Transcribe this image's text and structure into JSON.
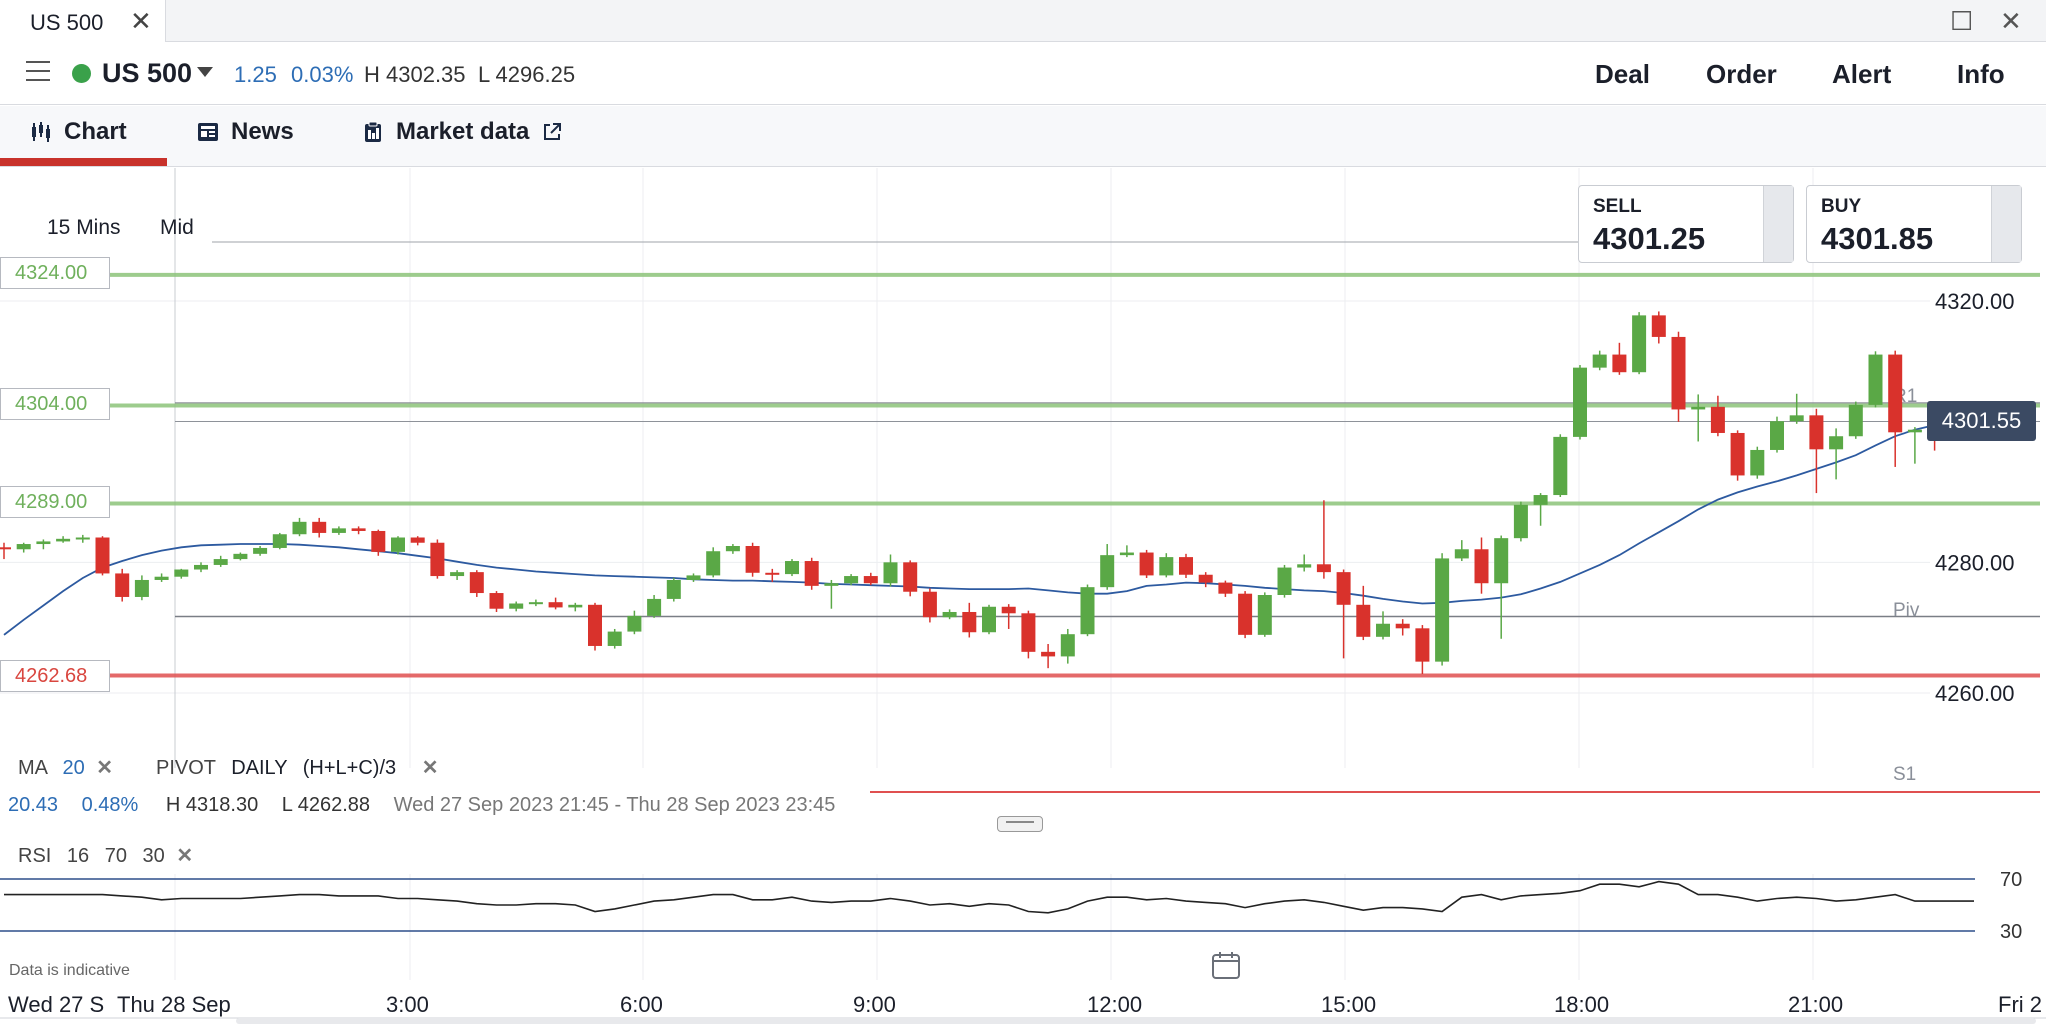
{
  "window": {
    "tab_title": "US 500",
    "close_glyph": "✕",
    "maximize_glyph": "☐",
    "window_close_glyph": "✕"
  },
  "header": {
    "instrument": "US 500",
    "change": "1.25",
    "change_pct": "0.03%",
    "high": "H 4302.35",
    "low": "L 4296.25",
    "actions": [
      "Deal",
      "Order",
      "Alert",
      "Info"
    ],
    "status_color": "#3aa14a"
  },
  "nav": {
    "tabs": [
      {
        "label": "Chart",
        "icon": "candlestick-icon",
        "active": true
      },
      {
        "label": "News",
        "icon": "newspaper-icon"
      },
      {
        "label": "Market data",
        "icon": "clipboard-icon",
        "external_icon": "external-link-icon"
      }
    ]
  },
  "chart_controls": {
    "interval": "15 Mins",
    "price_type": "Mid"
  },
  "quote": {
    "sell_label": "SELL",
    "sell_price": "4301.25",
    "buy_label": "BUY",
    "buy_price": "4301.85",
    "current_price": "4301.55"
  },
  "levels": [
    {
      "label": "4324.00",
      "value": 4324.0,
      "color": "#8cc47a"
    },
    {
      "label": "4304.00",
      "value": 4304.0,
      "color": "#8cc47a"
    },
    {
      "label": "4289.00",
      "value": 4289.0,
      "color": "#8cc47a"
    },
    {
      "label": "4262.68",
      "value": 4262.68,
      "color": "#e05050"
    }
  ],
  "pivot_labels": [
    "R1",
    "Piv",
    "S1"
  ],
  "indicators": {
    "ma_label": "MA",
    "ma_period": "20",
    "pivot_label": "PIVOT",
    "pivot_period": "DAILY",
    "pivot_formula": "(H+L+C)/3",
    "remove_glyph": "✕",
    "rsi_label": "RSI",
    "rsi_period": "16",
    "rsi_upper": "70",
    "rsi_lower": "30"
  },
  "range_info": {
    "change": "20.43",
    "change_pct": "0.48%",
    "high": "H 4318.30",
    "low": "L 4262.88",
    "period": "Wed 27 Sep 2023 21:45 - Thu 28 Sep 2023 23:45"
  },
  "footer": {
    "disclaimer": "Data is indicative"
  },
  "chart_data": {
    "type": "candlestick",
    "interval": "15 Mins",
    "price_axis": {
      "ticks": [
        "4320.00",
        "4280.00",
        "4260.00"
      ],
      "tick_values": [
        4320,
        4280,
        4260
      ]
    },
    "time_axis": {
      "ticks": [
        "Wed 27 S",
        "Thu 28 Sep",
        "3:00",
        "6:00",
        "9:00",
        "12:00",
        "15:00",
        "18:00",
        "21:00",
        "Fri 2"
      ]
    },
    "rsi_axis": {
      "ticks": [
        "70",
        "30"
      ]
    },
    "candles": [
      {
        "o": 4282.3,
        "h": 4283,
        "l": 4280.5,
        "c": 4282.0
      },
      {
        "o": 4282.0,
        "h": 4283,
        "l": 4281.5,
        "c": 4282.8
      },
      {
        "o": 4282.8,
        "h": 4283.5,
        "l": 4282,
        "c": 4283.2
      },
      {
        "o": 4283.2,
        "h": 4284,
        "l": 4283,
        "c": 4283.6
      },
      {
        "o": 4283.6,
        "h": 4284.2,
        "l": 4283,
        "c": 4283.8
      },
      {
        "o": 4283.8,
        "h": 4284,
        "l": 4278,
        "c": 4278.3
      },
      {
        "o": 4278.3,
        "h": 4279,
        "l": 4274,
        "c": 4274.7
      },
      {
        "o": 4274.7,
        "h": 4278,
        "l": 4274.2,
        "c": 4277.3
      },
      {
        "o": 4277.3,
        "h": 4278.3,
        "l": 4277,
        "c": 4277.8
      },
      {
        "o": 4277.8,
        "h": 4279,
        "l": 4277.5,
        "c": 4278.9
      },
      {
        "o": 4278.9,
        "h": 4280,
        "l": 4278.5,
        "c": 4279.6
      },
      {
        "o": 4279.6,
        "h": 4281,
        "l": 4279.3,
        "c": 4280.5
      },
      {
        "o": 4280.5,
        "h": 4281.5,
        "l": 4280.3,
        "c": 4281.3
      },
      {
        "o": 4281.3,
        "h": 4282.5,
        "l": 4281,
        "c": 4282.2
      },
      {
        "o": 4282.2,
        "h": 4284.5,
        "l": 4282,
        "c": 4284.3
      },
      {
        "o": 4284.3,
        "h": 4286.8,
        "l": 4284,
        "c": 4286.2
      },
      {
        "o": 4286.2,
        "h": 4286.8,
        "l": 4283.8,
        "c": 4284.5
      },
      {
        "o": 4284.5,
        "h": 4285.5,
        "l": 4284.2,
        "c": 4285.2
      },
      {
        "o": 4285.2,
        "h": 4285.5,
        "l": 4284.3,
        "c": 4284.8
      },
      {
        "o": 4284.8,
        "h": 4285,
        "l": 4281,
        "c": 4281.6
      },
      {
        "o": 4281.6,
        "h": 4284,
        "l": 4281.2,
        "c": 4283.8
      },
      {
        "o": 4283.8,
        "h": 4284,
        "l": 4282.6,
        "c": 4283.0
      },
      {
        "o": 4283.0,
        "h": 4283.5,
        "l": 4277.5,
        "c": 4277.9
      },
      {
        "o": 4277.9,
        "h": 4278.8,
        "l": 4277.3,
        "c": 4278.5
      },
      {
        "o": 4278.5,
        "h": 4278.8,
        "l": 4274.7,
        "c": 4275.3
      },
      {
        "o": 4275.3,
        "h": 4275.6,
        "l": 4272.4,
        "c": 4272.9
      },
      {
        "o": 4272.9,
        "h": 4274,
        "l": 4272.5,
        "c": 4273.7
      },
      {
        "o": 4273.7,
        "h": 4274.3,
        "l": 4273.3,
        "c": 4273.9
      },
      {
        "o": 4273.9,
        "h": 4274.6,
        "l": 4272.8,
        "c": 4273.1
      },
      {
        "o": 4273.1,
        "h": 4273.8,
        "l": 4272.5,
        "c": 4273.5
      },
      {
        "o": 4273.5,
        "h": 4273.8,
        "l": 4266.5,
        "c": 4267.2
      },
      {
        "o": 4267.2,
        "h": 4269.8,
        "l": 4266.8,
        "c": 4269.4
      },
      {
        "o": 4269.4,
        "h": 4272.6,
        "l": 4269,
        "c": 4271.8
      },
      {
        "o": 4271.8,
        "h": 4275,
        "l": 4271.5,
        "c": 4274.4
      },
      {
        "o": 4274.4,
        "h": 4277.6,
        "l": 4274,
        "c": 4277.3
      },
      {
        "o": 4277.3,
        "h": 4278.3,
        "l": 4277,
        "c": 4278.0
      },
      {
        "o": 4278.0,
        "h": 4282.3,
        "l": 4277.7,
        "c": 4281.7
      },
      {
        "o": 4281.7,
        "h": 4282.8,
        "l": 4281.3,
        "c": 4282.5
      },
      {
        "o": 4282.5,
        "h": 4283,
        "l": 4277.8,
        "c": 4278.4
      },
      {
        "o": 4278.4,
        "h": 4279,
        "l": 4277,
        "c": 4278.2
      },
      {
        "o": 4278.2,
        "h": 4280.5,
        "l": 4277.9,
        "c": 4280.2
      },
      {
        "o": 4280.2,
        "h": 4280.7,
        "l": 4275.8,
        "c": 4276.4
      },
      {
        "o": 4276.4,
        "h": 4277.3,
        "l": 4272.9,
        "c": 4276.8
      },
      {
        "o": 4276.8,
        "h": 4278.2,
        "l": 4276.5,
        "c": 4277.9
      },
      {
        "o": 4277.9,
        "h": 4278.4,
        "l": 4276.5,
        "c": 4276.8
      },
      {
        "o": 4276.8,
        "h": 4281.2,
        "l": 4276.3,
        "c": 4280.0
      },
      {
        "o": 4280.0,
        "h": 4280.3,
        "l": 4274.8,
        "c": 4275.5
      },
      {
        "o": 4275.5,
        "h": 4276,
        "l": 4270.8,
        "c": 4271.6
      },
      {
        "o": 4271.6,
        "h": 4272.8,
        "l": 4271.3,
        "c": 4272.4
      },
      {
        "o": 4272.4,
        "h": 4273.8,
        "l": 4268.5,
        "c": 4269.3
      },
      {
        "o": 4269.3,
        "h": 4273.5,
        "l": 4269,
        "c": 4273.2
      },
      {
        "o": 4273.2,
        "h": 4273.6,
        "l": 4269.8,
        "c": 4272.2
      },
      {
        "o": 4272.2,
        "h": 4272.6,
        "l": 4265.3,
        "c": 4266.3
      },
      {
        "o": 4266.3,
        "h": 4267.5,
        "l": 4263.8,
        "c": 4265.6
      },
      {
        "o": 4265.6,
        "h": 4269.8,
        "l": 4264.5,
        "c": 4269.0
      },
      {
        "o": 4269.0,
        "h": 4276.6,
        "l": 4268.7,
        "c": 4276.2
      },
      {
        "o": 4276.2,
        "h": 4282.8,
        "l": 4275.8,
        "c": 4281.1
      },
      {
        "o": 4281.1,
        "h": 4282.6,
        "l": 4280.8,
        "c": 4281.5
      },
      {
        "o": 4281.5,
        "h": 4281.9,
        "l": 4277.6,
        "c": 4278.0
      },
      {
        "o": 4278.0,
        "h": 4281.4,
        "l": 4277.7,
        "c": 4280.8
      },
      {
        "o": 4280.8,
        "h": 4281.3,
        "l": 4277.6,
        "c": 4278.1
      },
      {
        "o": 4278.1,
        "h": 4278.5,
        "l": 4276.2,
        "c": 4276.9
      },
      {
        "o": 4276.9,
        "h": 4277.2,
        "l": 4274.7,
        "c": 4275.2
      },
      {
        "o": 4275.2,
        "h": 4275.6,
        "l": 4268.4,
        "c": 4268.9
      },
      {
        "o": 4268.9,
        "h": 4275.4,
        "l": 4268.6,
        "c": 4275.0
      },
      {
        "o": 4275.0,
        "h": 4279.6,
        "l": 4274.6,
        "c": 4279.2
      },
      {
        "o": 4279.2,
        "h": 4281.2,
        "l": 4278.6,
        "c": 4279.7
      },
      {
        "o": 4279.7,
        "h": 4289.5,
        "l": 4277.5,
        "c": 4278.5
      },
      {
        "o": 4278.5,
        "h": 4278.9,
        "l": 4265.3,
        "c": 4273.5
      },
      {
        "o": 4273.5,
        "h": 4276.4,
        "l": 4268.1,
        "c": 4268.6
      },
      {
        "o": 4268.6,
        "h": 4272.5,
        "l": 4268.2,
        "c": 4270.6
      },
      {
        "o": 4270.6,
        "h": 4271.3,
        "l": 4268.8,
        "c": 4269.9
      },
      {
        "o": 4269.9,
        "h": 4270.4,
        "l": 4262.9,
        "c": 4264.8
      },
      {
        "o": 4264.8,
        "h": 4281.4,
        "l": 4264.2,
        "c": 4280.6
      },
      {
        "o": 4280.6,
        "h": 4283.4,
        "l": 4280.2,
        "c": 4282.0
      },
      {
        "o": 4282.0,
        "h": 4283.8,
        "l": 4275.2,
        "c": 4276.8
      },
      {
        "o": 4276.8,
        "h": 4284.1,
        "l": 4268.3,
        "c": 4283.7
      },
      {
        "o": 4283.7,
        "h": 4289.3,
        "l": 4283.2,
        "c": 4288.8
      },
      {
        "o": 4288.8,
        "h": 4290.6,
        "l": 4285.6,
        "c": 4290.3
      },
      {
        "o": 4290.3,
        "h": 4299.6,
        "l": 4290,
        "c": 4299.2
      },
      {
        "o": 4299.2,
        "h": 4310.2,
        "l": 4298.8,
        "c": 4309.8
      },
      {
        "o": 4309.8,
        "h": 4312.4,
        "l": 4309.4,
        "c": 4311.8
      },
      {
        "o": 4311.8,
        "h": 4313.6,
        "l": 4308.7,
        "c": 4309.1
      },
      {
        "o": 4309.1,
        "h": 4318.3,
        "l": 4308.8,
        "c": 4317.8
      },
      {
        "o": 4317.8,
        "h": 4318.4,
        "l": 4313.5,
        "c": 4314.5
      },
      {
        "o": 4314.5,
        "h": 4315.3,
        "l": 4301.5,
        "c": 4303.4
      },
      {
        "o": 4303.4,
        "h": 4305.7,
        "l": 4298.5,
        "c": 4303.8
      },
      {
        "o": 4303.8,
        "h": 4305.5,
        "l": 4299.3,
        "c": 4299.8
      },
      {
        "o": 4299.8,
        "h": 4300.2,
        "l": 4292.5,
        "c": 4293.3
      },
      {
        "o": 4293.3,
        "h": 4297.7,
        "l": 4292.8,
        "c": 4297.2
      },
      {
        "o": 4297.2,
        "h": 4302.3,
        "l": 4296.8,
        "c": 4301.6
      },
      {
        "o": 4301.6,
        "h": 4305.8,
        "l": 4301.2,
        "c": 4302.5
      },
      {
        "o": 4302.5,
        "h": 4303.5,
        "l": 4290.6,
        "c": 4297.3
      },
      {
        "o": 4297.3,
        "h": 4300.5,
        "l": 4292.7,
        "c": 4299.3
      },
      {
        "o": 4299.3,
        "h": 4304.6,
        "l": 4298.9,
        "c": 4304.1
      },
      {
        "o": 4304.1,
        "h": 4312.3,
        "l": 4303.7,
        "c": 4311.8
      },
      {
        "o": 4311.8,
        "h": 4312.4,
        "l": 4294.6,
        "c": 4299.9
      },
      {
        "o": 4299.9,
        "h": 4300.7,
        "l": 4295.1,
        "c": 4300.3
      },
      {
        "o": 4300.3,
        "h": 4300.6,
        "l": 4297.1,
        "c": 4299.6
      },
      {
        "o": 4299.6,
        "h": 4302.1,
        "l": 4299.2,
        "c": 4301.5
      },
      {
        "o": 4301.5,
        "h": 4301.8,
        "l": 4300.9,
        "c": 4301.2
      }
    ],
    "ma20": [
      4268.9,
      4271.2,
      4273.4,
      4275.6,
      4277.6,
      4279.2,
      4280.2,
      4281.1,
      4281.8,
      4282.3,
      4282.6,
      4282.7,
      4282.8,
      4282.8,
      4282.8,
      4282.7,
      4282.5,
      4282.3,
      4282.0,
      4281.7,
      4281.4,
      4281.0,
      4280.6,
      4280.1,
      4279.6,
      4279.2,
      4278.9,
      4278.6,
      4278.4,
      4278.2,
      4278.0,
      4277.9,
      4277.8,
      4277.7,
      4277.6,
      4277.4,
      4277.3,
      4277.2,
      4277.2,
      4277.1,
      4277.0,
      4276.9,
      4276.7,
      4276.6,
      4276.5,
      4276.4,
      4276.3,
      4276.1,
      4276.0,
      4275.9,
      4275.9,
      4275.9,
      4276.0,
      4275.7,
      4275.4,
      4275.2,
      4275.2,
      4275.6,
      4276.4,
      4276.6,
      4276.9,
      4276.8,
      4276.6,
      4276.4,
      4276.1,
      4275.9,
      4275.7,
      4275.6,
      4275.3,
      4274.9,
      4274.4,
      4274.0,
      4273.7,
      4273.8,
      4274.1,
      4274.3,
      4274.6,
      4275.1,
      4276.0,
      4277.0,
      4278.3,
      4279.6,
      4281.1,
      4282.9,
      4284.6,
      4286.3,
      4288.1,
      4289.6,
      4290.7,
      4291.6,
      4292.4,
      4293.3,
      4294.3,
      4295.3,
      4296.4,
      4297.9,
      4299.3,
      4300.3,
      4301.0,
      4301.6,
      4301.8
    ],
    "rsi": [
      58,
      58,
      58,
      58,
      58,
      58,
      57,
      56,
      54,
      55,
      55,
      55,
      55,
      56,
      57,
      58,
      58,
      57,
      57,
      57,
      55,
      55,
      54,
      53,
      51,
      50,
      50,
      51,
      51,
      50,
      45,
      47,
      50,
      53,
      54,
      56,
      58,
      58,
      54,
      54,
      56,
      53,
      52,
      53,
      53,
      55,
      53,
      50,
      51,
      49,
      51,
      50,
      45,
      44,
      47,
      53,
      56,
      56,
      54,
      55,
      53,
      52,
      51,
      48,
      51,
      53,
      54,
      52,
      49,
      46,
      48,
      48,
      47,
      45,
      56,
      58,
      54,
      57,
      58,
      59,
      61,
      66,
      66,
      64,
      68,
      66,
      58,
      58,
      56,
      53,
      55,
      56,
      55,
      53,
      54,
      56,
      58,
      53,
      53,
      53,
      53
    ]
  }
}
